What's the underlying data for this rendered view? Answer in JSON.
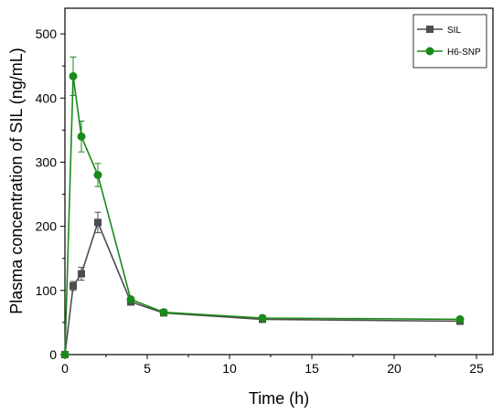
{
  "chart_data": {
    "type": "line",
    "xlabel": "Time (h)",
    "ylabel": "Plasma concentration of SIL (ng/mL)",
    "xlim": [
      0,
      26
    ],
    "ylim": [
      0,
      540
    ],
    "xticks": [
      0,
      5,
      10,
      15,
      20,
      25
    ],
    "yticks": [
      0,
      100,
      200,
      300,
      400,
      500
    ],
    "legend_position": "top-right",
    "series": [
      {
        "name": "SIL",
        "color": "#4d4d4d",
        "marker": "square",
        "x": [
          0,
          0.5,
          1,
          2,
          4,
          6,
          12,
          24
        ],
        "y": [
          0,
          107,
          126,
          206,
          82,
          65,
          55,
          52
        ],
        "error": [
          0,
          7,
          10,
          16,
          3,
          2,
          2,
          2
        ]
      },
      {
        "name": "H6-SNP",
        "color": "#1a8a1a",
        "marker": "circle",
        "x": [
          0,
          0.5,
          1,
          2,
          4,
          6,
          12,
          24
        ],
        "y": [
          0,
          434,
          340,
          280,
          86,
          66,
          57,
          55
        ],
        "error": [
          0,
          30,
          24,
          18,
          4,
          3,
          2,
          2
        ]
      }
    ]
  }
}
